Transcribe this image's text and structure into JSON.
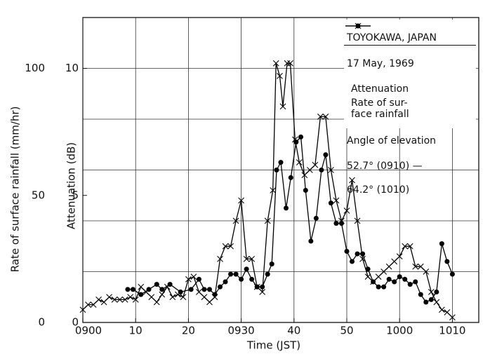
{
  "chart_data": {
    "type": "line",
    "title": "TOYOKAWA, JAPAN",
    "subtitle": "17 May, 1969",
    "x_label": "Time (JST)",
    "y_label": "Attenuation (dB)",
    "y2_label": "Rate of surface rainfall (mm/hr)",
    "annotations": [
      "Angle of elevation",
      "52.7° (0910) —",
      "64.2° (1010)"
    ],
    "xlim": [
      0,
      75
    ],
    "xticks": [
      {
        "value": 0,
        "label": "0900"
      },
      10,
      20,
      {
        "value": 30,
        "label": "0930"
      },
      40,
      50,
      {
        "value": 60,
        "label": "1000"
      },
      {
        "value": 70,
        "label": "1010"
      }
    ],
    "ylim": [
      0,
      12
    ],
    "yticks": [
      0,
      5,
      10
    ],
    "ygrid": [
      2,
      4,
      6,
      8,
      10
    ],
    "y2lim": [
      0,
      120
    ],
    "y2ticks": [
      0,
      50,
      100
    ],
    "grid": true,
    "series": [
      {
        "name": "Attenuation",
        "color": "#000000",
        "marker": "dot",
        "x": [
          8.5,
          9.5,
          11,
          12.5,
          14,
          15,
          16.5,
          18.5,
          20.5,
          22,
          23,
          24,
          25,
          26,
          27,
          28,
          29,
          30,
          31,
          32,
          33,
          34,
          35,
          35.8,
          36.7,
          37.5,
          38.5,
          39.4,
          40.4,
          41.3,
          42.2,
          43.2,
          44.2,
          45.2,
          46,
          47,
          48,
          49,
          50,
          51,
          52,
          53,
          54,
          55,
          56,
          57,
          58,
          59,
          60,
          61,
          62,
          63,
          64,
          65,
          66,
          67,
          68,
          69,
          70
        ],
        "values": [
          1.3,
          1.3,
          1.1,
          1.3,
          1.5,
          1.3,
          1.5,
          1.2,
          1.3,
          1.7,
          1.3,
          1.3,
          1.1,
          1.4,
          1.6,
          1.9,
          1.9,
          1.7,
          2.1,
          1.7,
          1.4,
          1.4,
          1.9,
          2.3,
          6.0,
          6.3,
          4.5,
          5.7,
          7.1,
          7.3,
          5.2,
          3.2,
          4.1,
          6.0,
          6.6,
          4.7,
          3.9,
          3.9,
          2.8,
          2.4,
          2.7,
          2.7,
          2.1,
          1.6,
          1.4,
          1.4,
          1.7,
          1.6,
          1.8,
          1.7,
          1.5,
          1.6,
          1.1,
          0.8,
          0.9,
          1.2,
          3.1,
          2.4,
          1.9
        ]
      },
      {
        "name": "Rate of sur-\nface rainfall",
        "color": "#000000",
        "marker": "cross",
        "axis": "y2",
        "x": [
          0,
          1,
          2,
          3,
          4,
          5,
          6,
          7,
          8,
          9,
          10,
          11,
          12,
          13,
          14,
          15,
          16,
          17,
          18,
          19,
          20,
          21,
          22,
          23,
          24,
          25,
          26,
          27,
          28,
          29,
          30,
          31,
          32,
          33,
          34,
          35,
          36,
          36.6,
          37.3,
          37.9,
          38.7,
          39.3,
          40.2,
          41,
          42,
          43,
          44,
          45,
          46,
          47,
          48,
          49,
          50,
          51,
          52,
          53,
          54,
          55,
          56,
          57,
          58,
          59,
          60,
          61,
          62,
          63,
          64,
          65,
          66,
          67,
          68,
          69,
          70
        ],
        "values": [
          5,
          7,
          7,
          9,
          8,
          10,
          9,
          9,
          9,
          10,
          9,
          14,
          12,
          10,
          8,
          11,
          14,
          10,
          11,
          10,
          17,
          18,
          12,
          10,
          8,
          10,
          25,
          30,
          30,
          40,
          48,
          25,
          25,
          14,
          12,
          40,
          52,
          102,
          97,
          85,
          102,
          102,
          72,
          63,
          58,
          60,
          62,
          81,
          81,
          60,
          48,
          40,
          44,
          56,
          40,
          25,
          18,
          16,
          18,
          20,
          22,
          24,
          26,
          30,
          30,
          22,
          22,
          20,
          12,
          8,
          5,
          4,
          2
        ]
      }
    ]
  }
}
